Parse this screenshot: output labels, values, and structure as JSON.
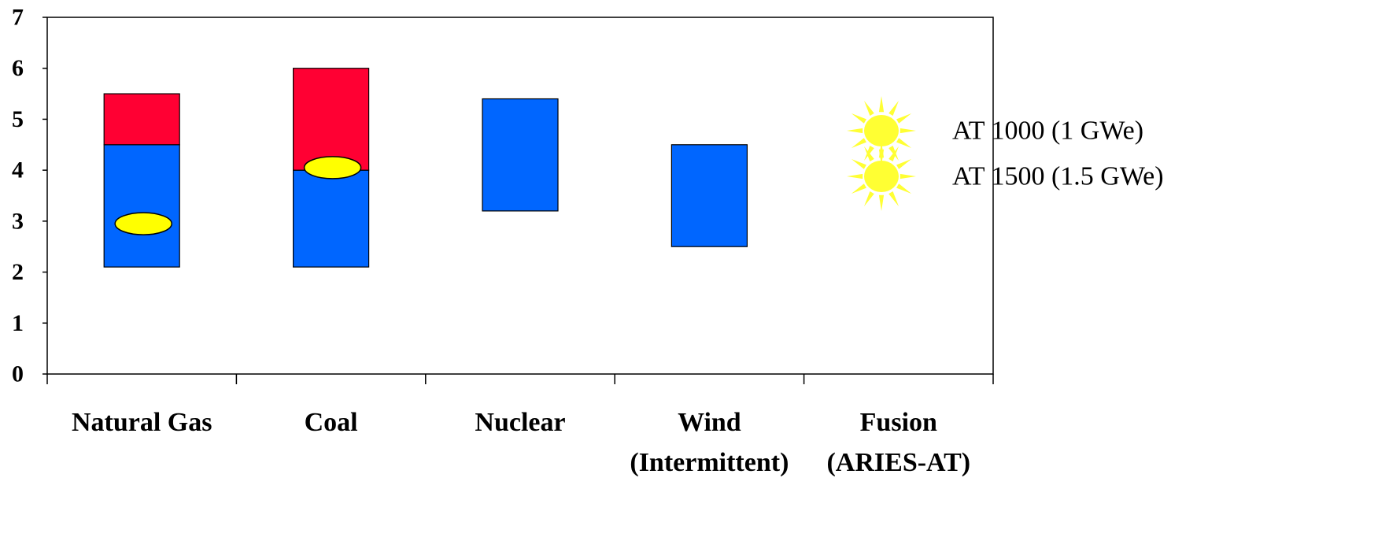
{
  "chart_data": {
    "type": "bar",
    "ylim": [
      0,
      7
    ],
    "y_ticks": [
      "0",
      "1",
      "2",
      "3",
      "4",
      "5",
      "6",
      "7"
    ],
    "grid": false,
    "categories": [
      {
        "line1": "Natural Gas",
        "line2": ""
      },
      {
        "line1": "Coal",
        "line2": ""
      },
      {
        "line1": "Nuclear",
        "line2": ""
      },
      {
        "line1": "Wind",
        "line2": "(Intermittent)"
      },
      {
        "line1": "Fusion",
        "line2": "(ARIES-AT)"
      }
    ],
    "ranges": [
      {
        "category_index": 0,
        "low": 2.1,
        "mid": 4.5,
        "high": 5.5
      },
      {
        "category_index": 1,
        "low": 2.1,
        "mid": 4.0,
        "high": 6.0
      },
      {
        "category_index": 2,
        "low": 3.2,
        "mid": 5.4,
        "high": 5.4
      },
      {
        "category_index": 3,
        "low": 2.5,
        "mid": 4.5,
        "high": 4.5
      }
    ],
    "markers": [
      {
        "category_index": 0,
        "value": 2.95
      },
      {
        "category_index": 1,
        "value": 4.05
      }
    ],
    "legend": {
      "placement": "right",
      "entries": [
        "AT 1000 (1 GWe)",
        "AT 1500 (1.5 GWe)"
      ]
    },
    "colors": {
      "lower_segment": "#0066ff",
      "upper_segment": "#ff0033",
      "marker": "#ffff00",
      "sun": "#ffff33"
    }
  }
}
